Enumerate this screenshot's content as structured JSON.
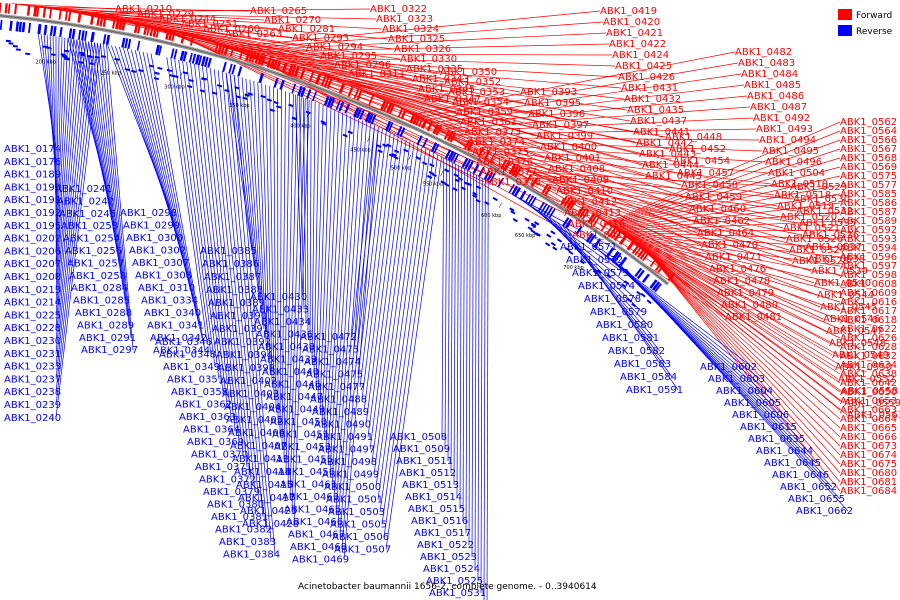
{
  "caption": "Acinetobacter baumannii 1656-2, complete genome. - 0..3940614",
  "legend": [
    {
      "name": "Forward",
      "color": "#ff0000"
    },
    {
      "name": "Reverse",
      "color": "#0000ff"
    }
  ],
  "colors": {
    "forward": "#ff0000",
    "reverse": "#0000ff",
    "backbone": "#888888"
  },
  "ticks": [
    "200 kbp",
    "250 kbp",
    "300 kbp",
    "350 kbp",
    "400 kbp",
    "450 kbp",
    "500 kbp",
    "550 kbp",
    "600 kbp",
    "650 kbp",
    "700 kbp"
  ],
  "forward_labels": [
    "ABK1_0210",
    "ABK1_0229",
    "ABK1_0244",
    "ABK1_0251",
    "ABK1_0260",
    "ABK1_0263",
    "ABK1_0265",
    "ABK1_0270",
    "ABK1_0281",
    "ABK1_0293",
    "ABK1_0294",
    "ABK1_0295",
    "ABK1_0296",
    "ABK1_0311",
    "ABK1_0322",
    "ABK1_0323",
    "ABK1_0324",
    "ABK1_0325",
    "ABK1_0326",
    "ABK1_0330",
    "ABK1_0335",
    "ABK1_0343",
    "ABK1_0345",
    "ABK1_0347",
    "ABK1_0350",
    "ABK1_0352",
    "ABK1_0353",
    "ABK1_0354",
    "ABK1_0359",
    "ABK1_0361",
    "ABK1_0373",
    "ABK1_0374",
    "ABK1_0375",
    "ABK1_0376",
    "ABK1_0377",
    "ABK1_0378",
    "ABK1_0393",
    "ABK1_0395",
    "ABK1_0396",
    "ABK1_0397",
    "ABK1_0399",
    "ABK1_0400",
    "ABK1_0401",
    "ABK1_0408",
    "ABK1_0409",
    "ABK1_0410",
    "ABK1_0412",
    "ABK1_0413",
    "ABK1_0416",
    "ABK1_0418",
    "ABK1_0419",
    "ABK1_0420",
    "ABK1_0421",
    "ABK1_0422",
    "ABK1_0424",
    "ABK1_0425",
    "ABK1_0426",
    "ABK1_0431",
    "ABK1_0432",
    "ABK1_0435",
    "ABK1_0437",
    "ABK1_0441",
    "ABK1_0442",
    "ABK1_0443",
    "ABK1_0444",
    "ABK1_0445",
    "ABK1_0448",
    "ABK1_0452",
    "ABK1_0454",
    "ABK1_0457",
    "ABK1_0458",
    "ABK1_0459",
    "ABK1_0460",
    "ABK1_0462",
    "ABK1_0464",
    "ABK1_0470",
    "ABK1_0471",
    "ABK1_0476",
    "ABK1_0478",
    "ABK1_0479",
    "ABK1_0480",
    "ABK1_0481",
    "ABK1_0482",
    "ABK1_0483",
    "ABK1_0484",
    "ABK1_0485",
    "ABK1_0486",
    "ABK1_0487",
    "ABK1_0492",
    "ABK1_0493",
    "ABK1_0494",
    "ABK1_0495",
    "ABK1_0496",
    "ABK1_0504",
    "ABK1_0510",
    "ABK1_0518",
    "ABK1_0519",
    "ABK1_0520",
    "ABK1_0521",
    "ABK1_0526",
    "ABK1_0527",
    "ABK1_0528",
    "ABK1_0529",
    "ABK1_0530",
    "ABK1_0532",
    "ABK1_0535",
    "ABK1_0536",
    "ABK1_0537",
    "ABK1_0538",
    "ABK1_0539",
    "ABK1_0540",
    "ABK1_0544",
    "ABK1_0545",
    "ABK1_0546",
    "ABK1_0547",
    "ABK1_0548",
    "ABK1_0549",
    "ABK1_0550",
    "ABK1_0552",
    "ABK1_0558",
    "ABK1_0559",
    "ABK1_0561",
    "ABK1_0562",
    "ABK1_0564",
    "ABK1_0566",
    "ABK1_0567",
    "ABK1_0568",
    "ABK1_0569",
    "ABK1_0575",
    "ABK1_0577",
    "ABK1_0585",
    "ABK1_0586",
    "ABK1_0587",
    "ABK1_0589",
    "ABK1_0592",
    "ABK1_0593",
    "ABK1_0594",
    "ABK1_0596",
    "ABK1_0597",
    "ABK1_0598",
    "ABK1_0608",
    "ABK1_0609",
    "ABK1_0616",
    "ABK1_0617",
    "ABK1_0618",
    "ABK1_0622",
    "ABK1_0626",
    "ABK1_0628",
    "ABK1_0632",
    "ABK1_0634",
    "ABK1_0638",
    "ABK1_0642",
    "ABK1_0650",
    "ABK1_0653",
    "ABK1_0663",
    "ABK1_0664",
    "ABK1_0665",
    "ABK1_0666",
    "ABK1_0673",
    "ABK1_0674",
    "ABK1_0675",
    "ABK1_0680",
    "ABK1_0681",
    "ABK1_0684"
  ],
  "reverse_labels": [
    "ABK1_0174",
    "ABK1_0176",
    "ABK1_0189",
    "ABK1_0190",
    "ABK1_0191",
    "ABK1_0192",
    "ABK1_0195",
    "ABK1_0202",
    "ABK1_0206",
    "ABK1_0207",
    "ABK1_0208",
    "ABK1_0213",
    "ABK1_0214",
    "ABK1_0225",
    "ABK1_0228",
    "ABK1_0230",
    "ABK1_0231",
    "ABK1_0233",
    "ABK1_0237",
    "ABK1_0238",
    "ABK1_0239",
    "ABK1_0240",
    "ABK1_0241",
    "ABK1_0242",
    "ABK1_0245",
    "ABK1_0253",
    "ABK1_0254",
    "ABK1_0256",
    "ABK1_0257",
    "ABK1_0258",
    "ABK1_0284",
    "ABK1_0285",
    "ABK1_0288",
    "ABK1_0289",
    "ABK1_0291",
    "ABK1_0297",
    "ABK1_0298",
    "ABK1_0299",
    "ABK1_0300",
    "ABK1_0302",
    "ABK1_0307",
    "ABK1_0308",
    "ABK1_0310",
    "ABK1_0334",
    "ABK1_0340",
    "ABK1_0341",
    "ABK1_0342",
    "ABK1_0344",
    "ABK1_0346",
    "ABK1_0348",
    "ABK1_0349",
    "ABK1_0351",
    "ABK1_0358",
    "ABK1_0362",
    "ABK1_0363",
    "ABK1_0364",
    "ABK1_0369",
    "ABK1_0370",
    "ABK1_0371",
    "ABK1_0372",
    "ABK1_0379",
    "ABK1_0380",
    "ABK1_0381",
    "ABK1_0382",
    "ABK1_0383",
    "ABK1_0384",
    "ABK1_0385",
    "ABK1_0386",
    "ABK1_0387",
    "ABK1_0388",
    "ABK1_0389",
    "ABK1_0390",
    "ABK1_0391",
    "ABK1_0392",
    "ABK1_0394",
    "ABK1_0398",
    "ABK1_0402",
    "ABK1_0403",
    "ABK1_0404",
    "ABK1_0405",
    "ABK1_0406",
    "ABK1_0407",
    "ABK1_0411",
    "ABK1_0414",
    "ABK1_0415",
    "ABK1_0417",
    "ABK1_0423",
    "ABK1_0428",
    "ABK1_0430",
    "ABK1_0433",
    "ABK1_0434",
    "ABK1_0436",
    "ABK1_0438",
    "ABK1_0439",
    "ABK1_0440",
    "ABK1_0446",
    "ABK1_0447",
    "ABK1_0449",
    "ABK1_0450",
    "ABK1_0451",
    "ABK1_0453",
    "ABK1_0455",
    "ABK1_0456",
    "ABK1_0461",
    "ABK1_0463",
    "ABK1_0465",
    "ABK1_0466",
    "ABK1_0467",
    "ABK1_0468",
    "ABK1_0469",
    "ABK1_0472",
    "ABK1_0473",
    "ABK1_0474",
    "ABK1_0475",
    "ABK1_0477",
    "ABK1_0488",
    "ABK1_0489",
    "ABK1_0490",
    "ABK1_0491",
    "ABK1_0497",
    "ABK1_0498",
    "ABK1_0499",
    "ABK1_0500",
    "ABK1_0501",
    "ABK1_0503",
    "ABK1_0505",
    "ABK1_0506",
    "ABK1_0507",
    "ABK1_0508",
    "ABK1_0509",
    "ABK1_0511",
    "ABK1_0512",
    "ABK1_0513",
    "ABK1_0514",
    "ABK1_0515",
    "ABK1_0516",
    "ABK1_0517",
    "ABK1_0522",
    "ABK1_0523",
    "ABK1_0524",
    "ABK1_0525",
    "ABK1_0531",
    "ABK1_0533",
    "ABK1_0534",
    "ABK1_0571",
    "ABK1_0572",
    "ABK1_0573",
    "ABK1_0574",
    "ABK1_0578",
    "ABK1_0579",
    "ABK1_0580",
    "ABK1_0581",
    "ABK1_0582",
    "ABK1_0583",
    "ABK1_0584",
    "ABK1_0591",
    "ABK1_0602",
    "ABK1_0603",
    "ABK1_0604",
    "ABK1_0605",
    "ABK1_0606",
    "ABK1_0615",
    "ABK1_0635",
    "ABK1_0644",
    "ABK1_0645",
    "ABK1_0646",
    "ABK1_0652",
    "ABK1_0655",
    "ABK1_0662"
  ]
}
